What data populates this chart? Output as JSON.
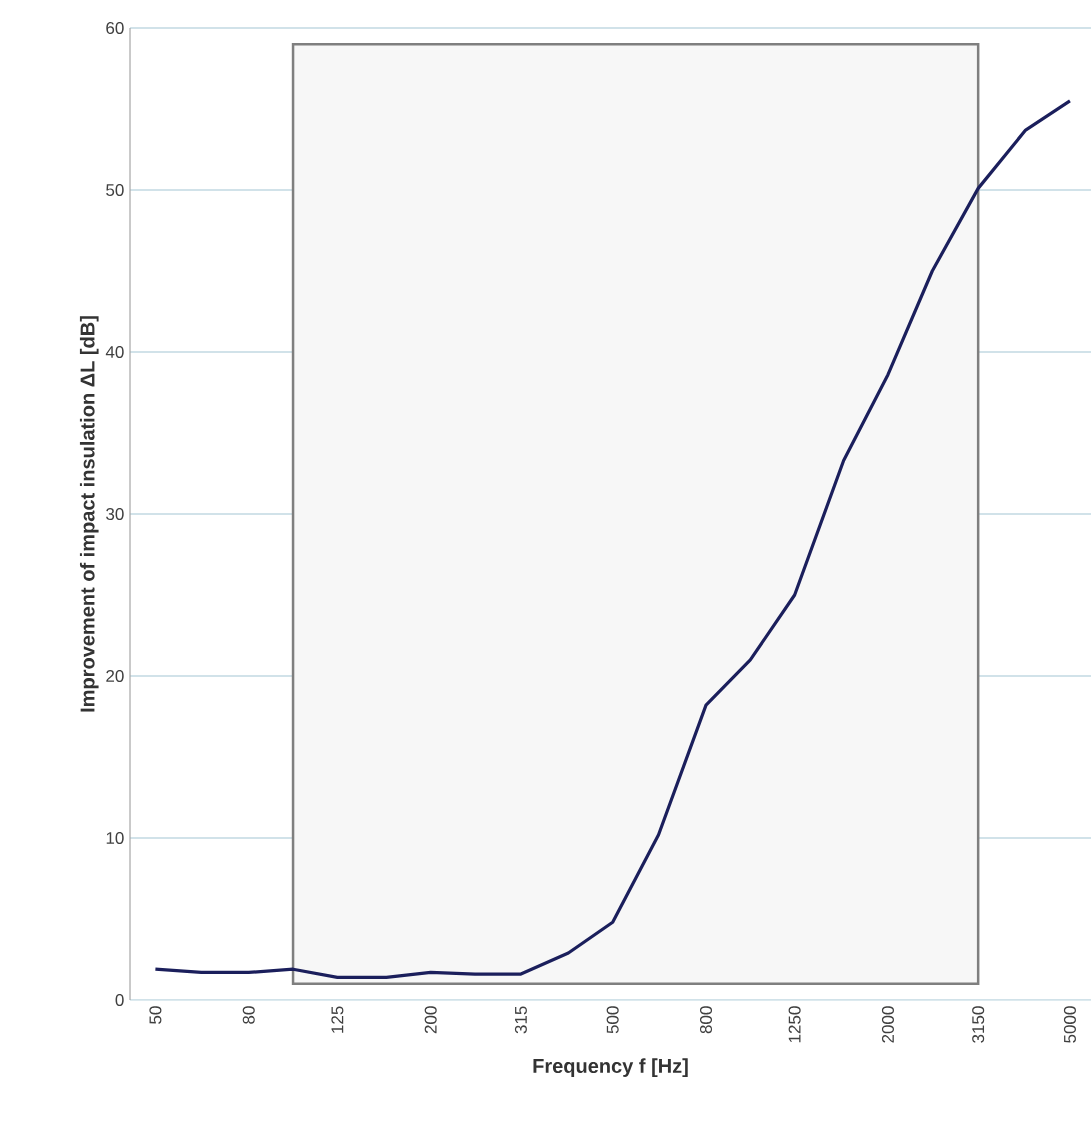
{
  "chart_data": {
    "type": "line",
    "xlabel": "Frequency f [Hz]",
    "ylabel": "Improvement of impact insulation ΔL [dB]",
    "x": [
      50,
      63,
      80,
      100,
      125,
      160,
      200,
      250,
      315,
      400,
      500,
      630,
      800,
      1000,
      1250,
      1600,
      2000,
      2500,
      3150,
      4000,
      5000
    ],
    "series": [
      {
        "color": "#1b1f5c",
        "values": [
          1.9,
          1.7,
          1.7,
          1.9,
          1.4,
          1.4,
          1.7,
          1.6,
          1.6,
          2.9,
          4.8,
          10.2,
          18.2,
          21,
          25,
          33.3,
          38.6,
          45,
          50.1,
          53.7,
          55.5
        ]
      }
    ],
    "log": "x",
    "xlim": [
      44,
      5560
    ],
    "xticks": [
      50,
      80,
      125,
      200,
      315,
      500,
      800,
      1250,
      2000,
      3150,
      5000
    ],
    "ylim": [
      0,
      60
    ],
    "yticks": [
      0,
      10,
      20,
      30,
      40,
      50,
      60
    ],
    "grid": "y",
    "bands": [
      {
        "axis": "x",
        "from": 100,
        "to": 3150,
        "color": "#7f7f7f"
      }
    ]
  }
}
